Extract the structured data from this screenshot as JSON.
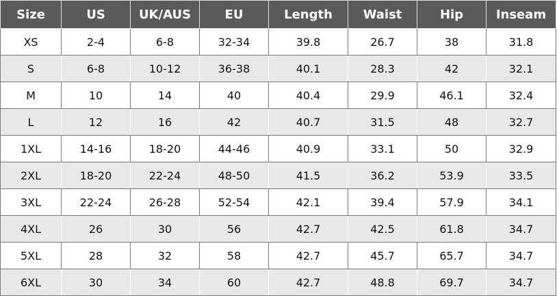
{
  "headers": [
    "Size",
    "US",
    "UK/AUS",
    "EU",
    "Length",
    "Waist",
    "Hip",
    "Inseam"
  ],
  "rows": [
    [
      "XS",
      "2-4",
      "6-8",
      "32-34",
      "39.8",
      "26.7",
      "38",
      "31.8"
    ],
    [
      "S",
      "6-8",
      "10-12",
      "36-38",
      "40.1",
      "28.3",
      "42",
      "32.1"
    ],
    [
      "M",
      "10",
      "14",
      "40",
      "40.4",
      "29.9",
      "46.1",
      "32.4"
    ],
    [
      "L",
      "12",
      "16",
      "42",
      "40.7",
      "31.5",
      "48",
      "32.7"
    ],
    [
      "1XL",
      "14-16",
      "18-20",
      "44-46",
      "40.9",
      "33.1",
      "50",
      "32.9"
    ],
    [
      "2XL",
      "18-20",
      "22-24",
      "48-50",
      "41.5",
      "36.2",
      "53.9",
      "33.5"
    ],
    [
      "3XL",
      "22-24",
      "26-28",
      "52-54",
      "42.1",
      "39.4",
      "57.9",
      "34.1"
    ],
    [
      "4XL",
      "26",
      "30",
      "56",
      "42.7",
      "42.5",
      "61.8",
      "34.7"
    ],
    [
      "5XL",
      "28",
      "32",
      "58",
      "42.7",
      "45.7",
      "65.7",
      "34.7"
    ],
    [
      "6XL",
      "30",
      "34",
      "60",
      "42.7",
      "48.8",
      "69.7",
      "34.7"
    ]
  ],
  "colors": {
    "header_bg": "#5a5a5a",
    "header_text": "#ffffff",
    "alt_row_bg": "#e8e8e8"
  }
}
